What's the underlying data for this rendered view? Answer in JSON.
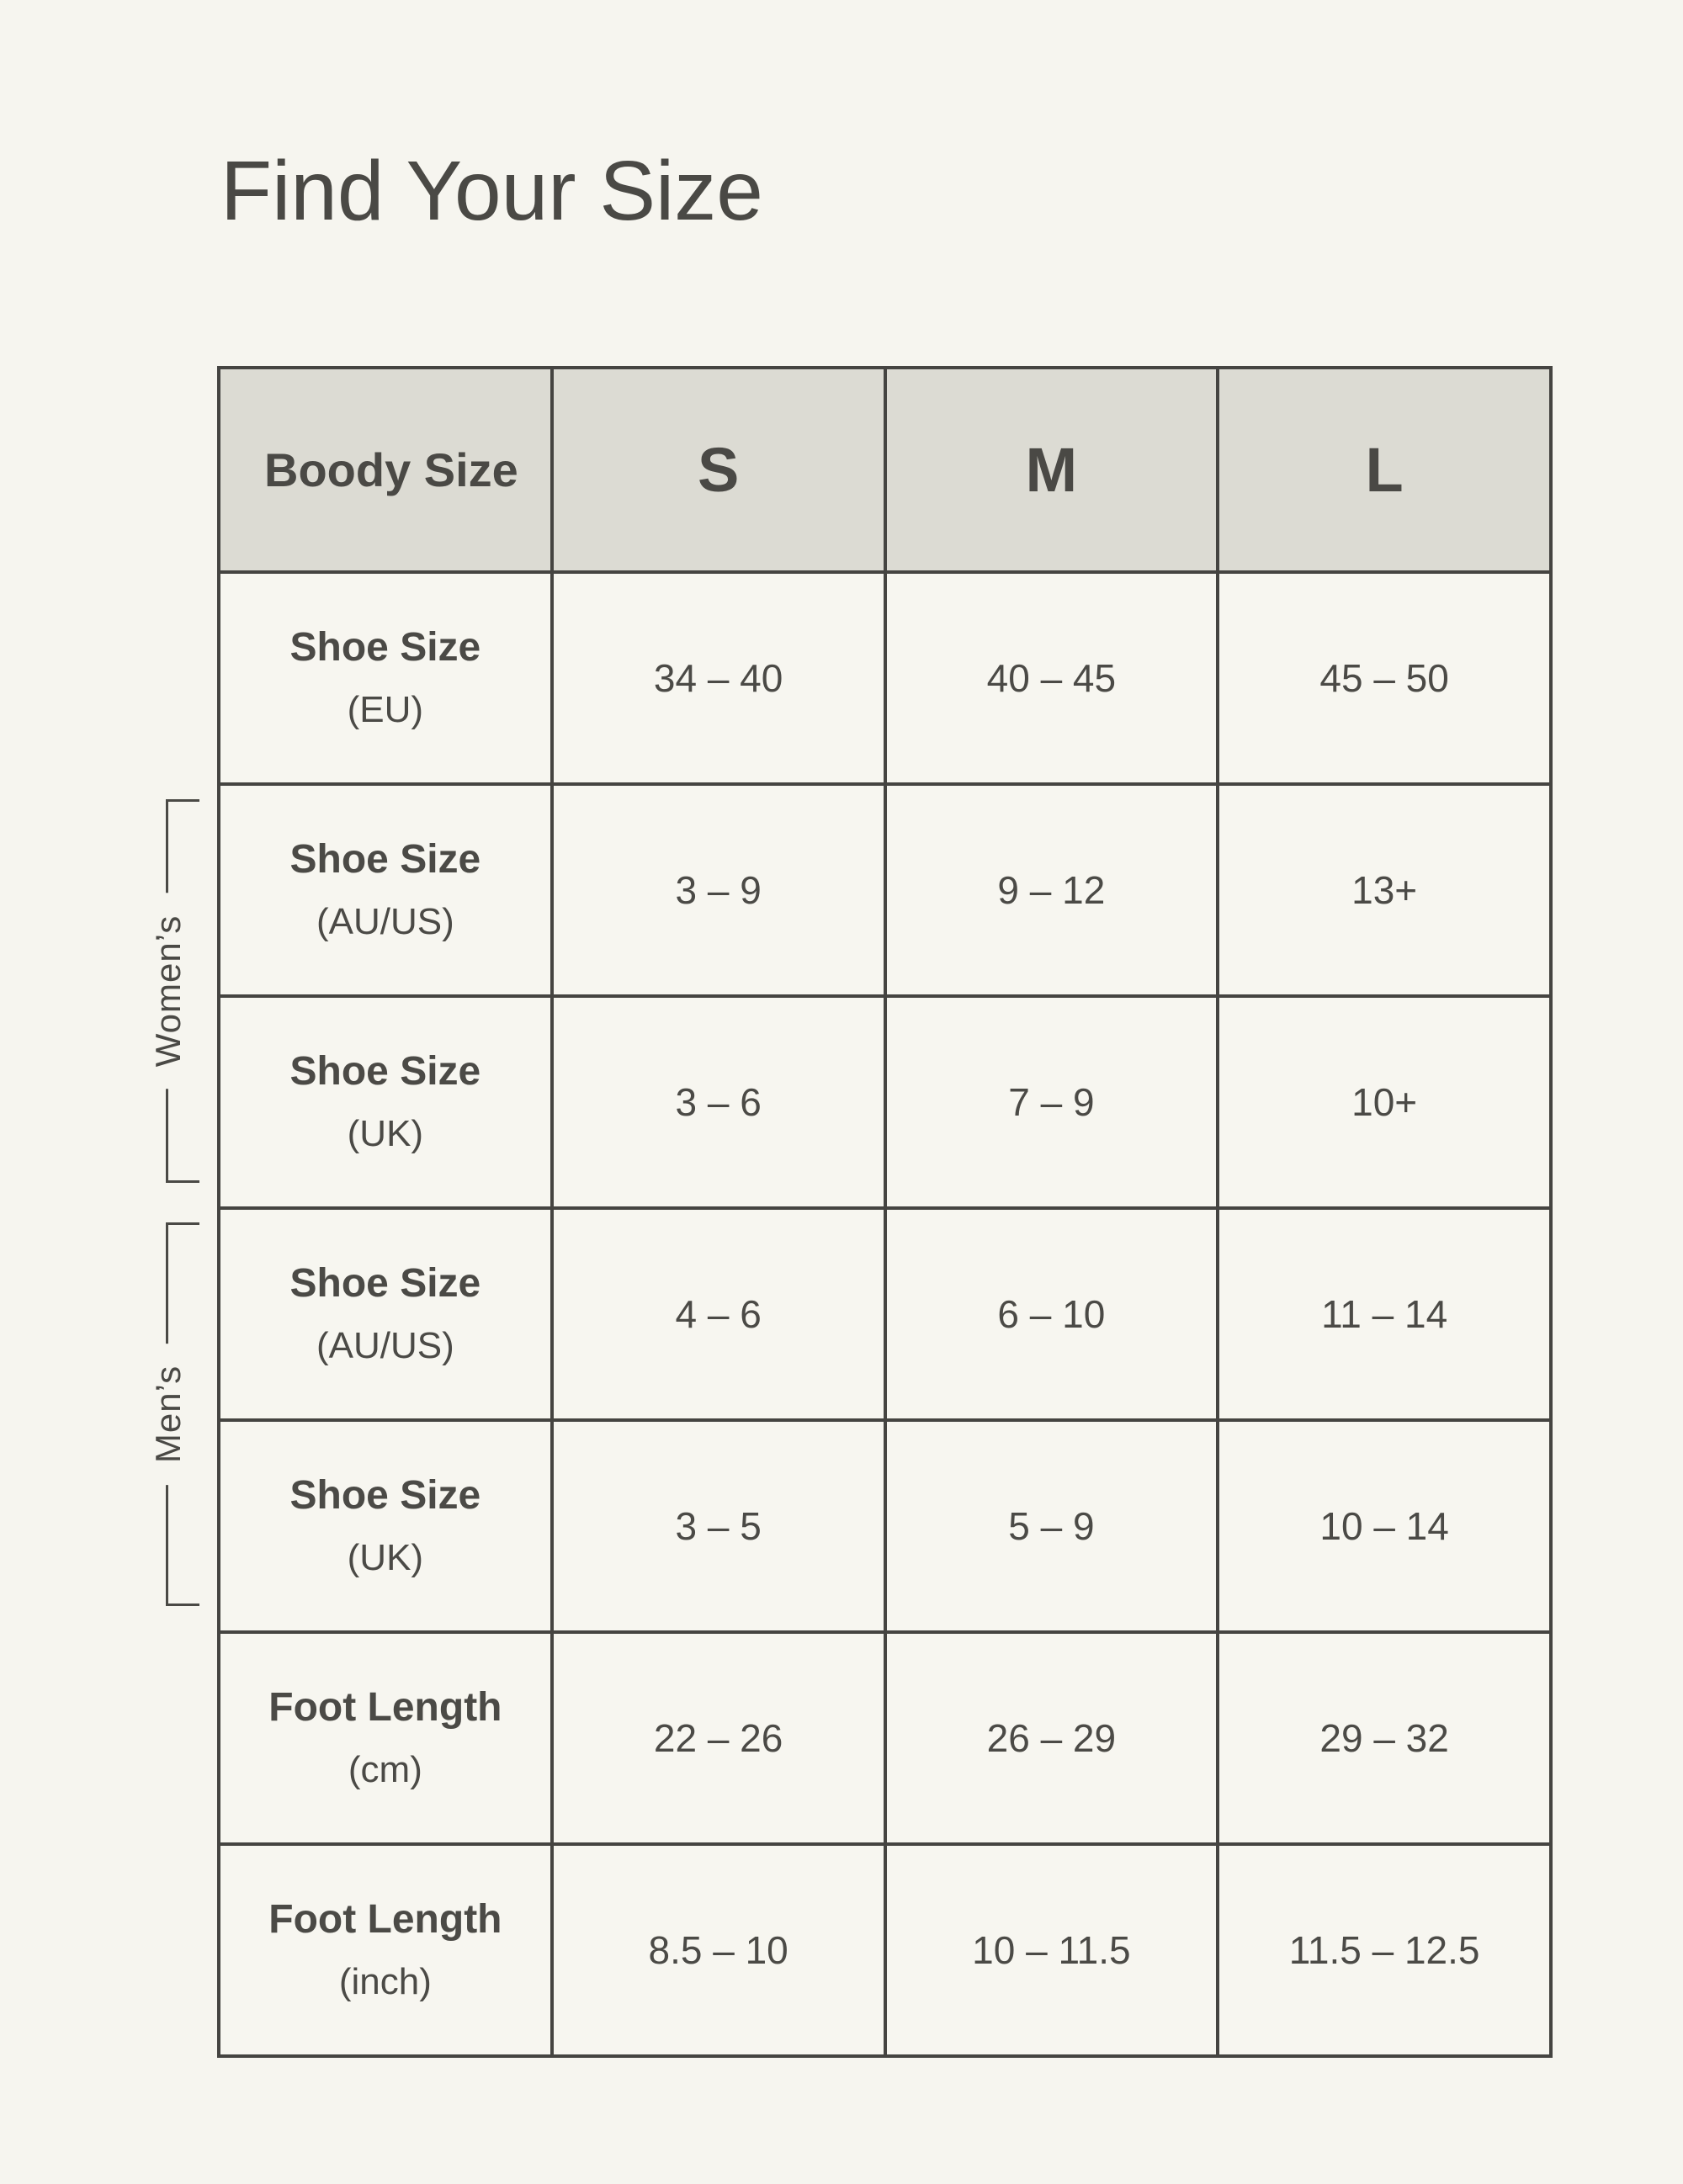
{
  "page": {
    "title": "Find Your Size",
    "background_color": "#f6f5ef",
    "border_color": "#454441",
    "header_bg_color": "#dcdbd3",
    "text_color": "#4a4945"
  },
  "table": {
    "header": {
      "label": "Boody Size",
      "sizes": [
        "S",
        "M",
        "L"
      ]
    },
    "groups": {
      "womens": "Women’s",
      "mens": "Men’s"
    },
    "rows": [
      {
        "name": "Shoe Size",
        "unit": "(EU)",
        "group": "",
        "values": [
          "34 – 40",
          "40 – 45",
          "45 – 50"
        ]
      },
      {
        "name": "Shoe Size",
        "unit": "(AU/US)",
        "group": "womens",
        "values": [
          "3 – 9",
          "9 – 12",
          "13+"
        ]
      },
      {
        "name": "Shoe Size",
        "unit": "(UK)",
        "group": "womens",
        "values": [
          "3 – 6",
          "7 – 9",
          "10+"
        ]
      },
      {
        "name": "Shoe Size",
        "unit": "(AU/US)",
        "group": "mens",
        "values": [
          "4 – 6",
          "6 – 10",
          "11 – 14"
        ]
      },
      {
        "name": "Shoe Size",
        "unit": "(UK)",
        "group": "mens",
        "values": [
          "3 – 5",
          "5 – 9",
          "10 – 14"
        ]
      },
      {
        "name": "Foot Length",
        "unit": "(cm)",
        "group": "",
        "values": [
          "22 – 26",
          "26 – 29",
          "29 – 32"
        ]
      },
      {
        "name": "Foot Length",
        "unit": "(inch)",
        "group": "",
        "values": [
          "8.5 – 10",
          "10 – 11.5",
          "11.5 – 12.5"
        ]
      }
    ]
  }
}
